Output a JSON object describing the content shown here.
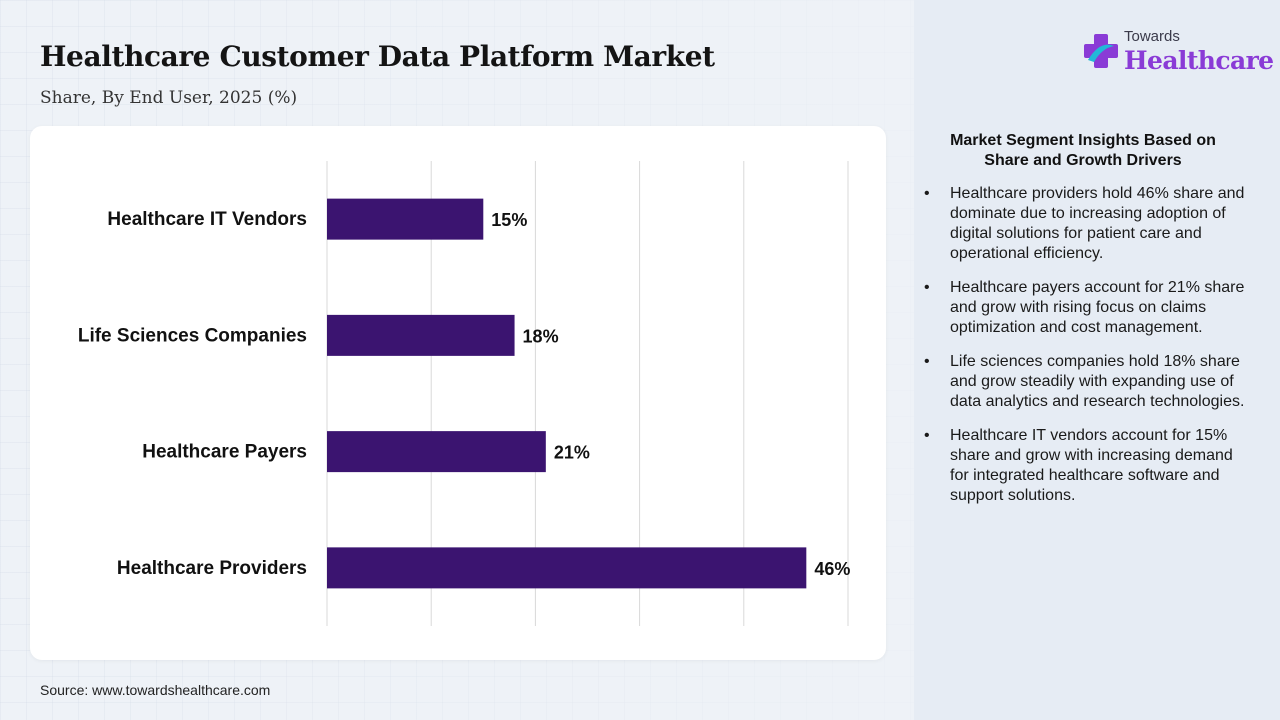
{
  "header": {
    "title": "Healthcare Customer Data Platform Market",
    "subtitle": "Share, By End User, 2025 (%)"
  },
  "logo": {
    "top": "Towards",
    "main": "Healthcare"
  },
  "chart_data": {
    "type": "bar",
    "orientation": "horizontal",
    "categories": [
      "Healthcare IT Vendors",
      "Life Sciences Companies",
      "Healthcare Payers",
      "Healthcare Providers"
    ],
    "values": [
      15,
      18,
      21,
      46
    ],
    "value_labels": [
      "15%",
      "18%",
      "21%",
      "46%"
    ],
    "xlim": [
      0,
      50
    ],
    "grid": true,
    "bar_color": "#3b1470"
  },
  "insights": {
    "title": "Market Segment Insights Based on Share and Growth Drivers",
    "bullet": "•",
    "items": [
      "Healthcare providers hold 46% share and dominate due to increasing adoption of digital solutions for patient care and operational efficiency.",
      "Healthcare payers account for 21% share and grow with rising focus on claims optimization and cost management.",
      "Life sciences companies hold 18% share and grow steadily with expanding use of data analytics and research technologies.",
      "Healthcare IT vendors account for 15% share and grow with increasing demand for integrated healthcare software and support solutions."
    ]
  },
  "source": "Source: www.towardshealthcare.com",
  "colors": {
    "accent": "#3b1470",
    "brand": "#8a3bd6",
    "brand_cyan": "#22b8d8"
  }
}
